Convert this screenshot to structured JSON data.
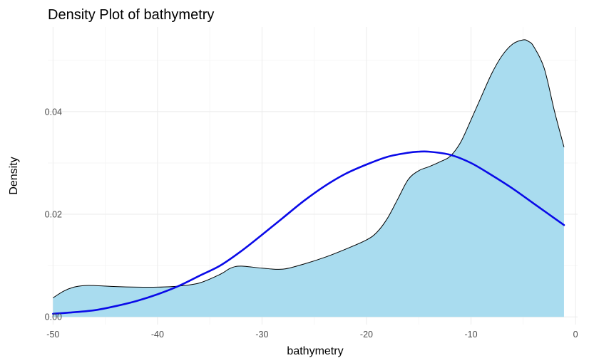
{
  "chart_data": {
    "type": "area",
    "title": "Density Plot of bathymetry",
    "xlabel": "bathymetry",
    "ylabel": "Density",
    "xlim": [
      -50.5,
      0.2
    ],
    "ylim": [
      -0.0015,
      0.0565
    ],
    "x_ticks": [
      -50,
      -40,
      -30,
      -20,
      -10,
      0
    ],
    "y_ticks": [
      0.0,
      0.02,
      0.04
    ],
    "y_tick_labels": [
      "0.00",
      "0.02",
      "0.04"
    ],
    "grid": true,
    "legend": "none",
    "series": [
      {
        "type": "area",
        "fill_color": "#a9dcef",
        "stroke_color": "#000000",
        "points": [
          [
            -50,
            0.0037
          ],
          [
            -49,
            0.005
          ],
          [
            -48,
            0.0058
          ],
          [
            -47,
            0.0061
          ],
          [
            -46,
            0.0061
          ],
          [
            -44,
            0.0059
          ],
          [
            -42,
            0.0058
          ],
          [
            -40,
            0.0058
          ],
          [
            -38,
            0.006
          ],
          [
            -36,
            0.0066
          ],
          [
            -34,
            0.0083
          ],
          [
            -33,
            0.0095
          ],
          [
            -32,
            0.0099
          ],
          [
            -30,
            0.0095
          ],
          [
            -28,
            0.0093
          ],
          [
            -26,
            0.0103
          ],
          [
            -24,
            0.0116
          ],
          [
            -22,
            0.0132
          ],
          [
            -20,
            0.015
          ],
          [
            -19,
            0.0165
          ],
          [
            -18,
            0.0192
          ],
          [
            -17,
            0.023
          ],
          [
            -16,
            0.0268
          ],
          [
            -15,
            0.0285
          ],
          [
            -14,
            0.0293
          ],
          [
            -13,
            0.0302
          ],
          [
            -12,
            0.0313
          ],
          [
            -11,
            0.034
          ],
          [
            -10,
            0.0384
          ],
          [
            -9,
            0.043
          ],
          [
            -8,
            0.0475
          ],
          [
            -7,
            0.051
          ],
          [
            -6,
            0.0532
          ],
          [
            -5,
            0.054
          ],
          [
            -4.5,
            0.0537
          ],
          [
            -4,
            0.0527
          ],
          [
            -3,
            0.0485
          ],
          [
            -2,
            0.04
          ],
          [
            -1.1,
            0.0331
          ]
        ]
      },
      {
        "type": "line",
        "stroke_color": "#0a0ae8",
        "points": [
          [
            -50,
            0.0006
          ],
          [
            -48,
            0.0009
          ],
          [
            -46,
            0.0013
          ],
          [
            -44,
            0.0021
          ],
          [
            -42,
            0.0031
          ],
          [
            -40,
            0.0044
          ],
          [
            -38,
            0.006
          ],
          [
            -36,
            0.008
          ],
          [
            -34,
            0.01
          ],
          [
            -32,
            0.0128
          ],
          [
            -30,
            0.016
          ],
          [
            -28,
            0.0193
          ],
          [
            -26,
            0.0226
          ],
          [
            -24,
            0.0255
          ],
          [
            -22,
            0.0279
          ],
          [
            -20,
            0.0297
          ],
          [
            -18,
            0.0312
          ],
          [
            -16,
            0.032
          ],
          [
            -15,
            0.0322
          ],
          [
            -14,
            0.0322
          ],
          [
            -12,
            0.0316
          ],
          [
            -10,
            0.03
          ],
          [
            -8,
            0.0276
          ],
          [
            -6,
            0.025
          ],
          [
            -4,
            0.0221
          ],
          [
            -2,
            0.0192
          ],
          [
            -1.1,
            0.0179
          ]
        ]
      }
    ]
  }
}
